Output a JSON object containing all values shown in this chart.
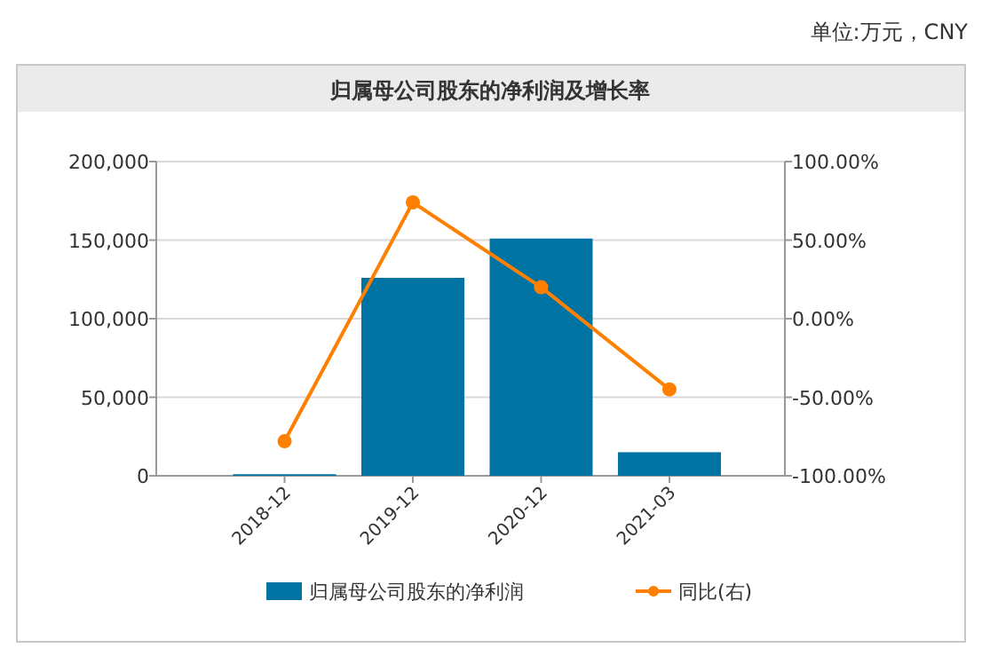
{
  "chart_data": {
    "type": "bar",
    "title": "归属母公司股东的净利润及增长率",
    "annotations": [
      "单位:万元，CNY"
    ],
    "categories": [
      "2018-12",
      "2019-12",
      "2020-12",
      "2021-03"
    ],
    "series": [
      {
        "name": "归属母公司股东的净利润",
        "color": "#0073a3",
        "values": [
          1000,
          126000,
          151000,
          15000
        ]
      },
      {
        "name": "同比(右)",
        "type": "line",
        "axis": "y2",
        "color": "#ff8000",
        "marker": "circle",
        "values": [
          -78,
          74,
          20,
          -45
        ]
      }
    ],
    "ylim": [
      0,
      200000
    ],
    "yticks": [
      {
        "value": 0,
        "label": "0"
      },
      {
        "value": 50000,
        "label": "50,000"
      },
      {
        "value": 100000,
        "label": "100,000"
      },
      {
        "value": 150000,
        "label": "150,000"
      },
      {
        "value": 200000,
        "label": "200,000"
      }
    ],
    "y2lim": [
      -100,
      100
    ],
    "y2ticks": [
      {
        "value": -100,
        "label": "-100.00%"
      },
      {
        "value": -50,
        "label": "-50.00%"
      },
      {
        "value": 0,
        "label": "0.00%"
      },
      {
        "value": 50,
        "label": "50.00%"
      },
      {
        "value": 100,
        "label": "100.00%"
      }
    ],
    "grid": "y",
    "legend": "bottom"
  }
}
